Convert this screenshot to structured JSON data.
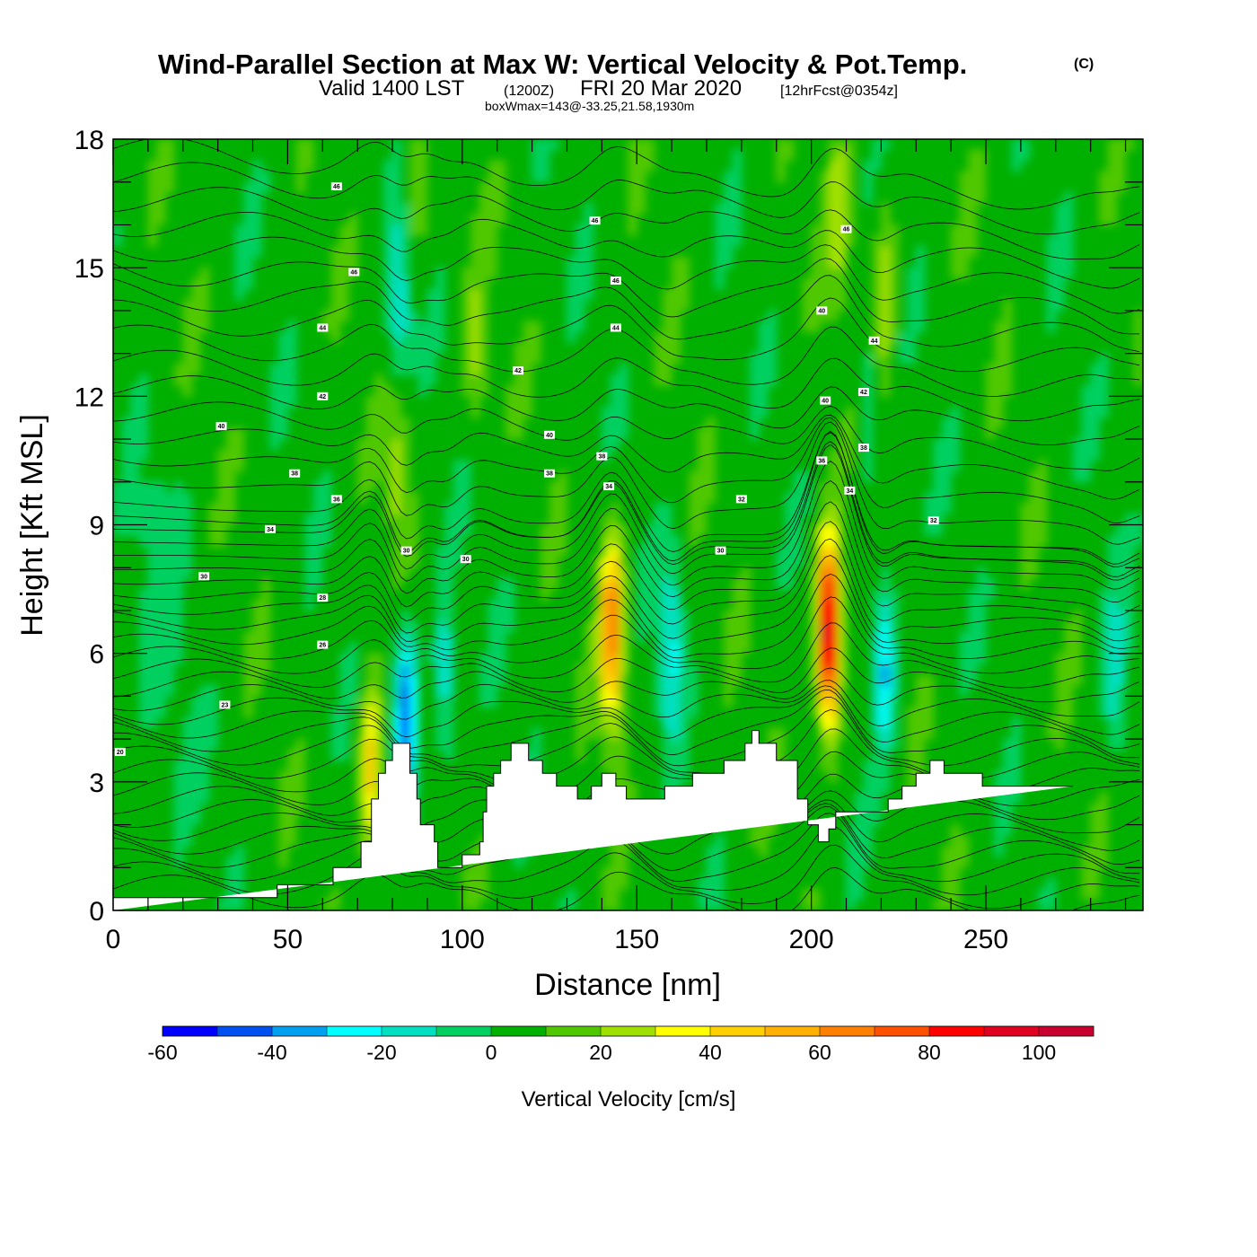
{
  "titles": {
    "main": "Wind-Parallel Section at Max W: Vertical Velocity & Pot.Temp.",
    "copyright": "(C)",
    "valid_prefix": "Valid 1400 LST",
    "valid_zulu": "(1200Z)",
    "valid_date": "FRI 20 Mar 2020",
    "forecast": "[12hrFcst@0354z]",
    "box_info": "boxWmax=143@-33.25,21.58,1930m"
  },
  "chart_data": {
    "type": "heatmap",
    "title": "Wind-Parallel Section at Max W: Vertical Velocity & Pot.Temp.",
    "xlabel": "Distance [nm]",
    "ylabel": "Height [Kft MSL]",
    "xlim": [
      0,
      295
    ],
    "ylim": [
      0,
      18
    ],
    "x_ticks": [
      0,
      50,
      100,
      150,
      200,
      250
    ],
    "y_ticks": [
      0,
      3,
      6,
      9,
      12,
      15,
      18
    ],
    "background_w": 5,
    "updrafts": [
      {
        "x": 143,
        "height": 6.6,
        "w": 65
      },
      {
        "x": 205,
        "height": 6.5,
        "w": 105
      },
      {
        "x": 74,
        "height": 3.3,
        "w": 40
      },
      {
        "x": 82,
        "height": 10.5,
        "w": 20
      },
      {
        "x": 221,
        "height": 14.3,
        "w": 25
      },
      {
        "x": 208,
        "height": 16.5,
        "w": 22
      },
      {
        "x": 104,
        "height": 13.0,
        "w": 18
      },
      {
        "x": 87,
        "height": 17.5,
        "w": 18
      }
    ],
    "downdrafts": [
      {
        "x": 84,
        "height": 4.5,
        "w": -55
      },
      {
        "x": 82,
        "height": 14.0,
        "w": -25
      },
      {
        "x": 95,
        "height": 5.4,
        "w": -25
      },
      {
        "x": 160,
        "height": 6.2,
        "w": -28
      },
      {
        "x": 221,
        "height": 5.8,
        "w": -38
      },
      {
        "x": 287,
        "height": 5.5,
        "w": -20
      },
      {
        "x": 216,
        "height": 12.0,
        "w": -15
      }
    ],
    "terrain_profile": {
      "distance_nm": [
        0,
        47,
        47,
        63,
        63,
        71,
        71,
        74,
        74,
        76,
        76,
        78,
        78,
        80,
        80,
        85,
        85,
        87,
        87,
        88,
        88,
        92,
        92,
        93,
        93,
        100,
        100,
        105,
        105,
        106,
        106,
        107,
        107,
        109,
        109,
        111,
        111,
        114,
        114,
        119,
        119,
        123,
        123,
        127,
        127,
        133,
        133,
        137,
        137,
        140,
        140,
        144,
        144,
        147,
        147,
        158,
        158,
        166,
        166,
        175,
        175,
        181,
        181,
        183,
        183,
        185,
        185,
        190,
        190,
        196,
        196,
        199,
        199,
        202,
        202,
        205,
        205,
        207,
        207,
        222,
        222,
        226,
        226,
        230,
        230,
        234,
        234,
        238,
        238,
        249,
        249,
        259,
        259,
        275,
        275,
        295
      ],
      "height_kft": [
        0.3,
        0.3,
        0.6,
        0.6,
        1.0,
        1.0,
        1.6,
        1.6,
        2.6,
        2.6,
        3.2,
        3.2,
        3.5,
        3.5,
        3.9,
        3.9,
        3.2,
        3.2,
        2.6,
        2.6,
        2.0,
        2.0,
        1.6,
        1.6,
        1.0,
        1.0,
        1.3,
        1.3,
        1.6,
        1.6,
        2.3,
        2.3,
        2.9,
        2.9,
        3.2,
        3.2,
        3.5,
        3.5,
        3.9,
        3.9,
        3.5,
        3.5,
        3.2,
        3.2,
        2.9,
        2.9,
        2.6,
        2.6,
        2.9,
        2.9,
        3.2,
        3.2,
        2.9,
        2.9,
        2.6,
        2.6,
        2.9,
        2.9,
        3.2,
        3.2,
        3.5,
        3.5,
        3.9,
        3.9,
        4.2,
        4.2,
        3.9,
        3.9,
        3.5,
        3.5,
        2.6,
        2.6,
        2.0,
        2.0,
        1.6,
        1.6,
        1.9,
        1.9,
        2.3,
        2.3,
        2.6,
        2.6,
        2.9,
        2.9,
        3.2,
        3.2,
        3.5,
        3.5,
        3.2,
        3.2,
        2.9,
        2.9,
        2.9,
        2.9
      ]
    },
    "theta_labels": [
      {
        "text": "46",
        "x": 64,
        "y": 16.9
      },
      {
        "text": "46",
        "x": 138,
        "y": 16.1
      },
      {
        "text": "46",
        "x": 210,
        "y": 15.9
      },
      {
        "text": "46",
        "x": 69,
        "y": 14.9
      },
      {
        "text": "46",
        "x": 144,
        "y": 14.7
      },
      {
        "text": "40",
        "x": 203,
        "y": 14.0
      },
      {
        "text": "44",
        "x": 60,
        "y": 13.6
      },
      {
        "text": "44",
        "x": 144,
        "y": 13.6
      },
      {
        "text": "44",
        "x": 218,
        "y": 13.3
      },
      {
        "text": "42",
        "x": 116,
        "y": 12.6
      },
      {
        "text": "42",
        "x": 60,
        "y": 12.0
      },
      {
        "text": "42",
        "x": 215,
        "y": 12.1
      },
      {
        "text": "40",
        "x": 31,
        "y": 11.3
      },
      {
        "text": "40",
        "x": 125,
        "y": 11.1
      },
      {
        "text": "40",
        "x": 204,
        "y": 11.9
      },
      {
        "text": "38",
        "x": 215,
        "y": 10.8
      },
      {
        "text": "38",
        "x": 140,
        "y": 10.6
      },
      {
        "text": "38",
        "x": 52,
        "y": 10.2
      },
      {
        "text": "38",
        "x": 125,
        "y": 10.2
      },
      {
        "text": "36",
        "x": 203,
        "y": 10.5
      },
      {
        "text": "36",
        "x": 64,
        "y": 9.6
      },
      {
        "text": "34",
        "x": 142,
        "y": 9.9
      },
      {
        "text": "34",
        "x": 211,
        "y": 9.8
      },
      {
        "text": "32",
        "x": 180,
        "y": 9.6
      },
      {
        "text": "32",
        "x": 235,
        "y": 9.1
      },
      {
        "text": "34",
        "x": 45,
        "y": 8.9
      },
      {
        "text": "30",
        "x": 101,
        "y": 8.2
      },
      {
        "text": "30",
        "x": 84,
        "y": 8.4
      },
      {
        "text": "30",
        "x": 174,
        "y": 8.4
      },
      {
        "text": "30",
        "x": 26,
        "y": 7.8
      },
      {
        "text": "28",
        "x": 60,
        "y": 7.3
      },
      {
        "text": "26",
        "x": 60,
        "y": 6.2
      },
      {
        "text": "23",
        "x": 32,
        "y": 4.8
      },
      {
        "text": "20",
        "x": 2,
        "y": 3.7
      }
    ]
  },
  "colorbar": {
    "title": "Vertical Velocity [cm/s]",
    "tick_labels": [
      "-60",
      "-40",
      "-20",
      "0",
      "20",
      "40",
      "60",
      "80",
      "100"
    ],
    "levels": [
      -60,
      -50,
      -40,
      -30,
      -20,
      -10,
      0,
      10,
      20,
      30,
      40,
      50,
      60,
      70,
      80,
      90,
      100,
      110
    ],
    "colors": [
      "#0000ff",
      "#0050f0",
      "#00a0f0",
      "#00ffff",
      "#00e0c0",
      "#00d060",
      "#00b000",
      "#50c800",
      "#a0e000",
      "#ffff00",
      "#ffd000",
      "#ffb000",
      "#ff8000",
      "#ff5000",
      "#ff0000",
      "#e00020",
      "#c80030"
    ]
  }
}
